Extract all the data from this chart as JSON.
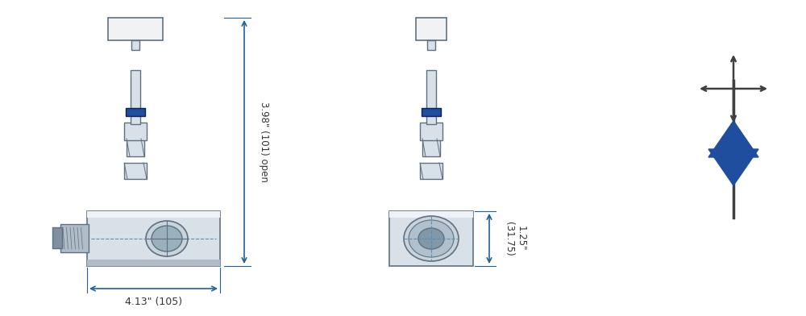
{
  "bg_color": "#ffffff",
  "valve_blue": "#1f4e9e",
  "steel_light": "#d8e0e8",
  "steel_mid": "#b0bcc8",
  "steel_dark": "#8090a0",
  "steel_edge": "#607080",
  "dim_color": "#2060a0",
  "text_color": "#333333",
  "arrow_color": "#555555",
  "title": "",
  "dim1_text": "3.98\" (101) open",
  "dim2_text": "4.13\" (105)",
  "dim3_text": "1.25\"\n(31.75)",
  "fig_width": 10.0,
  "fig_height": 3.92
}
